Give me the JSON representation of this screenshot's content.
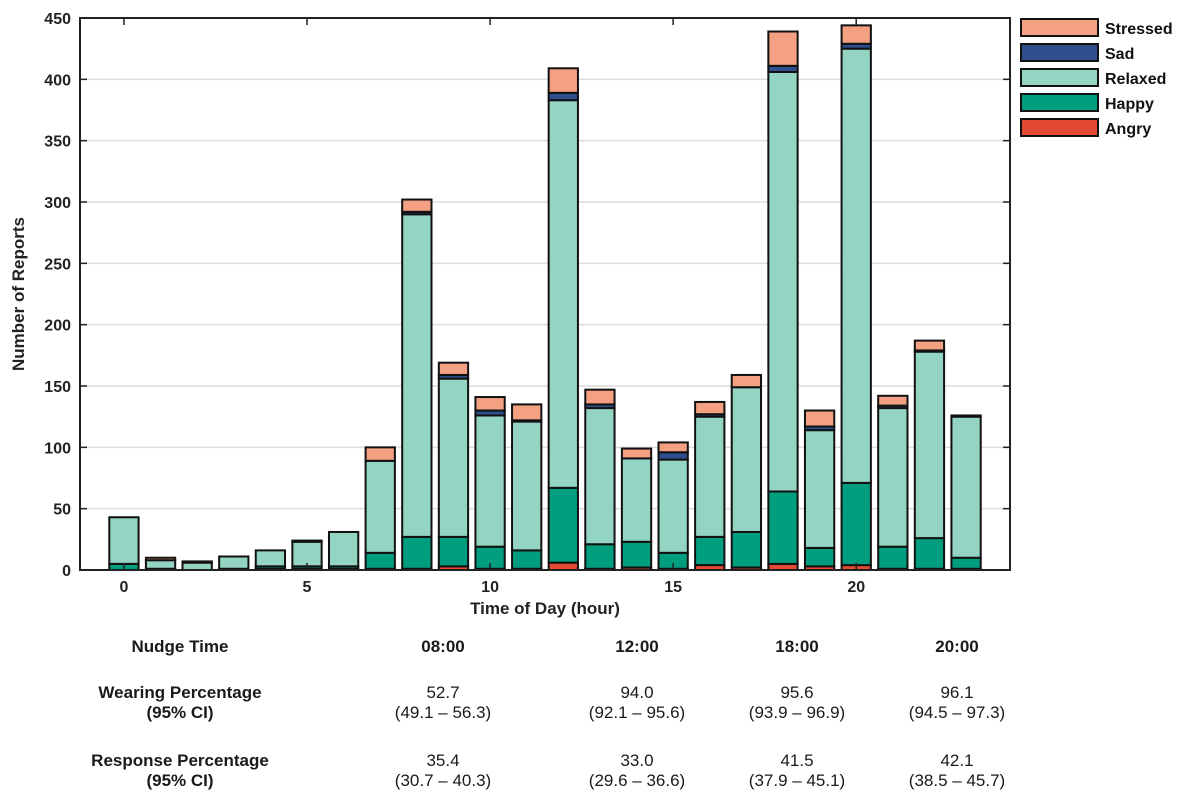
{
  "chart_data": {
    "type": "bar",
    "stacked": true,
    "xlabel": "Time of Day (hour)",
    "ylabel": "Number of Reports",
    "xlim": [
      -1.2,
      24.2
    ],
    "ylim": [
      0,
      450
    ],
    "xticks": [
      0,
      5,
      10,
      15,
      20
    ],
    "yticks": [
      0,
      50,
      100,
      150,
      200,
      250,
      300,
      350,
      400,
      450
    ],
    "grid": "horizontal",
    "legend_position": "outside-top-right",
    "x": [
      0,
      1,
      2,
      3,
      4,
      5,
      6,
      7,
      8,
      9,
      10,
      11,
      12,
      13,
      14,
      15,
      16,
      17,
      18,
      19,
      20,
      21,
      22,
      23
    ],
    "series": [
      {
        "name": "Angry",
        "color": "#e34a33",
        "values": [
          0,
          0,
          0,
          0,
          1,
          1,
          1,
          1,
          1,
          3,
          1,
          1,
          6,
          1,
          2,
          1,
          4,
          2,
          5,
          3,
          4,
          1,
          1,
          1
        ]
      },
      {
        "name": "Happy",
        "color": "#009e7f",
        "values": [
          5,
          1,
          0,
          1,
          2,
          2,
          2,
          13,
          26,
          24,
          18,
          15,
          61,
          20,
          21,
          13,
          23,
          29,
          59,
          15,
          67,
          18,
          25,
          9
        ]
      },
      {
        "name": "Relaxed",
        "color": "#94d4c3",
        "values": [
          38,
          7,
          6,
          10,
          13,
          20,
          28,
          75,
          263,
          129,
          107,
          105,
          316,
          111,
          68,
          76,
          98,
          118,
          342,
          96,
          354,
          113,
          152,
          115
        ]
      },
      {
        "name": "Sad",
        "color": "#2f4e8c",
        "values": [
          0,
          0,
          0,
          0,
          0,
          0,
          0,
          0,
          2,
          3,
          4,
          1,
          6,
          3,
          0,
          6,
          2,
          0,
          5,
          3,
          4,
          2,
          1,
          0
        ]
      },
      {
        "name": "Stressed",
        "color": "#f4a082",
        "values": [
          0,
          2,
          1,
          0,
          0,
          1,
          0,
          11,
          10,
          10,
          11,
          13,
          20,
          12,
          8,
          8,
          10,
          10,
          28,
          13,
          15,
          8,
          8,
          1
        ]
      }
    ],
    "legend_order": [
      "Stressed",
      "Sad",
      "Relaxed",
      "Happy",
      "Angry"
    ]
  },
  "table": {
    "header_label": "Nudge Time",
    "times": [
      "08:00",
      "12:00",
      "18:00",
      "20:00"
    ],
    "rows": [
      {
        "label_line1": "Wearing Percentage",
        "label_line2": "(95% CI)",
        "values": [
          "52.7",
          "94.0",
          "95.6",
          "96.1"
        ],
        "cis": [
          "(49.1 – 56.3)",
          "(92.1 – 95.6)",
          "(93.9 – 96.9)",
          "(94.5 – 97.3)"
        ]
      },
      {
        "label_line1": "Response Percentage",
        "label_line2": "(95% CI)",
        "values": [
          "35.4",
          "33.0",
          "41.5",
          "42.1"
        ],
        "cis": [
          "(30.7 – 40.3)",
          "(29.6 – 36.6)",
          "(37.9 – 45.1)",
          "(38.5 – 45.7)"
        ]
      }
    ]
  }
}
